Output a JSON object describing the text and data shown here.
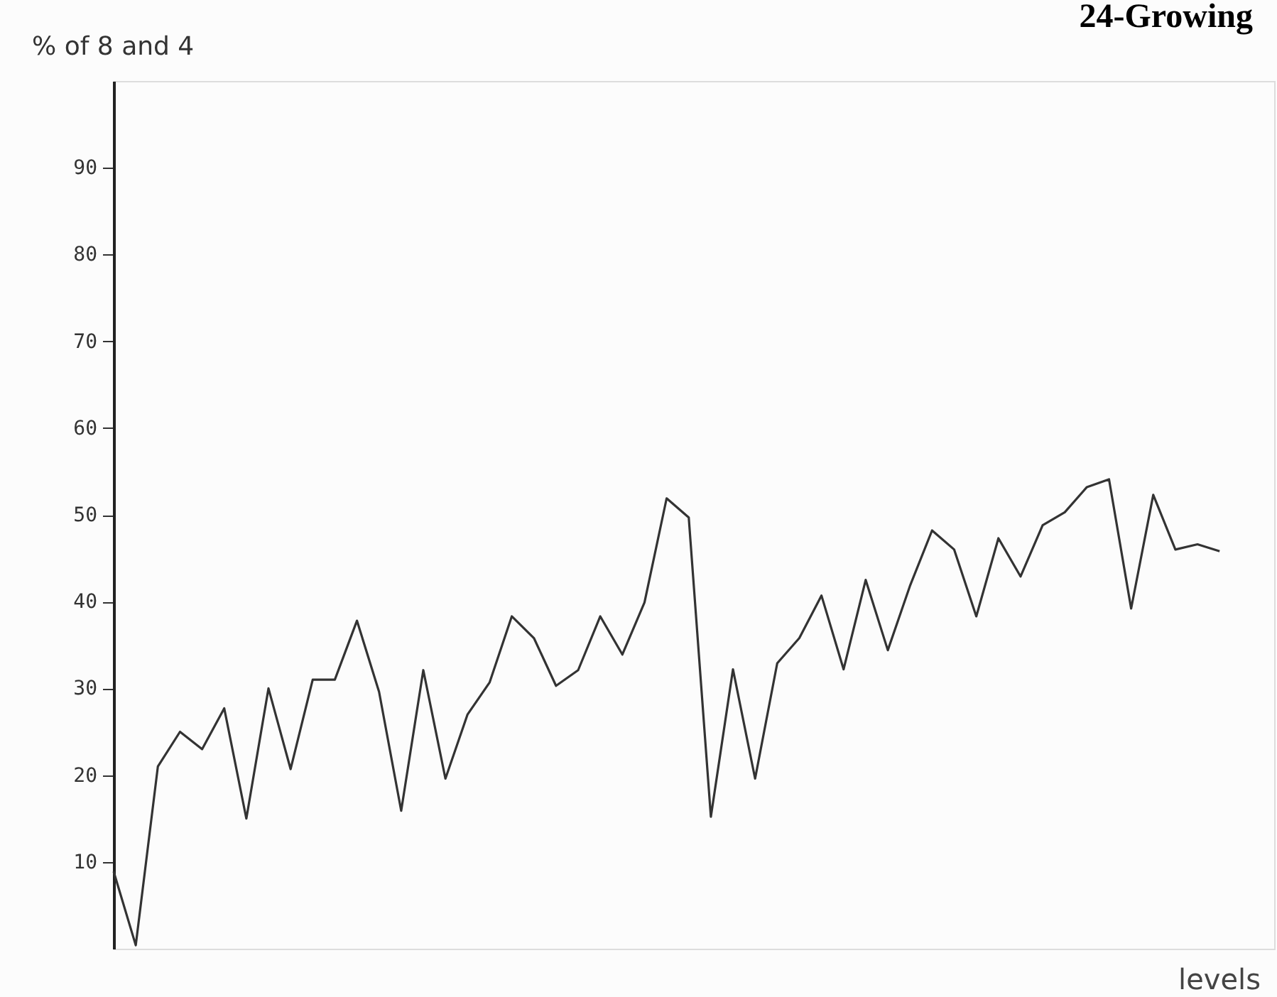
{
  "chart_data": {
    "type": "line",
    "title": "24-Growing",
    "ylabel": "% of 8 and 4",
    "xlabel": "levels",
    "categories": [
      null,
      null,
      null,
      null,
      null,
      null,
      null,
      null,
      null,
      null,
      null,
      null,
      null,
      null,
      null,
      null,
      null,
      null,
      null,
      null,
      null,
      null,
      null,
      null,
      null,
      null,
      null,
      null,
      null,
      null,
      null,
      null,
      null,
      null,
      null,
      null,
      null,
      null,
      null,
      null,
      null,
      null,
      null,
      null,
      null,
      null,
      null,
      null,
      null,
      null,
      null
    ],
    "series": [
      {
        "color": "#333333",
        "values": [
          8.9,
          0.4,
          21,
          25,
          23,
          27.7,
          15,
          30,
          20.7,
          31,
          31,
          37.8,
          29.6,
          15.9,
          32.1,
          19.6,
          27,
          30.7,
          38.3,
          35.8,
          30.3,
          32.1,
          38.3,
          33.9,
          39.9,
          51.9,
          49.7,
          15.2,
          32.2,
          19.6,
          32.9,
          35.8,
          40.7,
          32.2,
          42.5,
          34.4,
          41.8,
          48.2,
          46,
          38.3,
          47.3,
          42.9,
          48.8,
          50.3,
          53.2,
          54.1,
          39.2,
          52.3,
          46,
          46.6,
          45.8
        ]
      }
    ],
    "ylim": [
      0,
      100
    ],
    "yticks": [
      10,
      20,
      30,
      40,
      50,
      60,
      70,
      80,
      90
    ],
    "grid": false,
    "marker": "none",
    "line_style": "solid"
  }
}
